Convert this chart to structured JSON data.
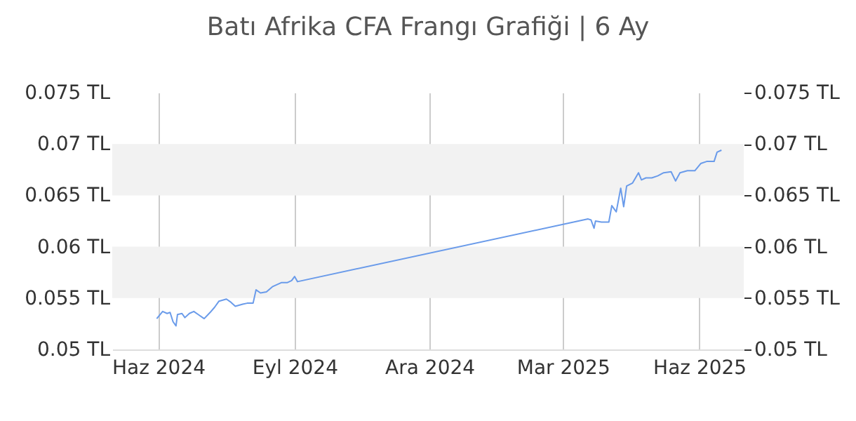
{
  "chart_data": {
    "type": "line",
    "title": "Batı Afrika CFA Frangı Grafiği | 6 Ay",
    "x": [
      "2024-05-31",
      "2024-06-04",
      "2024-06-07",
      "2024-06-09",
      "2024-06-11",
      "2024-06-13",
      "2024-06-14",
      "2024-06-17",
      "2024-06-19",
      "2024-06-22",
      "2024-06-25",
      "2024-06-28",
      "2024-07-02",
      "2024-07-06",
      "2024-07-09",
      "2024-07-12",
      "2024-07-17",
      "2024-07-20",
      "2024-07-23",
      "2024-07-28",
      "2024-07-31",
      "2024-08-04",
      "2024-08-06",
      "2024-08-09",
      "2024-08-13",
      "2024-08-17",
      "2024-08-23",
      "2024-08-27",
      "2024-08-30",
      "2024-09-01",
      "2024-09-03",
      "2025-03-18",
      "2025-03-20",
      "2025-03-22",
      "2025-03-23",
      "2025-03-27",
      "2025-04-01",
      "2025-04-03",
      "2025-04-06",
      "2025-04-09",
      "2025-04-11",
      "2025-04-13",
      "2025-04-17",
      "2025-04-21",
      "2025-04-23",
      "2025-04-26",
      "2025-04-30",
      "2025-05-04",
      "2025-05-08",
      "2025-05-13",
      "2025-05-16",
      "2025-05-19",
      "2025-05-24",
      "2025-05-29",
      "2025-06-02",
      "2025-06-06",
      "2025-06-11",
      "2025-06-13",
      "2025-06-16"
    ],
    "series": [
      {
        "color": "#6a9bea",
        "values": [
          0.053,
          0.0537,
          0.0535,
          0.0536,
          0.0527,
          0.0523,
          0.0534,
          0.0535,
          0.0531,
          0.0535,
          0.0537,
          0.0534,
          0.053,
          0.0536,
          0.0541,
          0.0547,
          0.0549,
          0.0546,
          0.0542,
          0.0544,
          0.0545,
          0.0545,
          0.0558,
          0.0555,
          0.0556,
          0.0561,
          0.0565,
          0.0565,
          0.0567,
          0.0571,
          0.0566,
          0.0627,
          0.0626,
          0.0618,
          0.0625,
          0.0624,
          0.0624,
          0.064,
          0.0634,
          0.0657,
          0.0639,
          0.0659,
          0.0662,
          0.0672,
          0.0665,
          0.0667,
          0.0667,
          0.0669,
          0.0672,
          0.0673,
          0.0664,
          0.0672,
          0.0674,
          0.0674,
          0.0681,
          0.0683,
          0.0683,
          0.0692,
          0.0694
        ]
      }
    ],
    "xlim": [
      "2024-05-01",
      "2025-07-01"
    ],
    "xticks": [
      {
        "value": "2024-06-01",
        "label": "Haz 2024"
      },
      {
        "value": "2024-09-01",
        "label": "Eyl 2024"
      },
      {
        "value": "2024-12-01",
        "label": "Ara 2024"
      },
      {
        "value": "2025-03-01",
        "label": "Mar 2025"
      },
      {
        "value": "2025-06-01",
        "label": "Haz 2025"
      }
    ],
    "ylim": [
      0.05,
      0.075
    ],
    "yticks": [
      {
        "value": 0.05,
        "label": "0.05 TL"
      },
      {
        "value": 0.055,
        "label": "0.055 TL"
      },
      {
        "value": 0.06,
        "label": "0.06 TL"
      },
      {
        "value": 0.065,
        "label": "0.065 TL"
      },
      {
        "value": 0.07,
        "label": "0.07 TL"
      },
      {
        "value": 0.075,
        "label": "0.075 TL"
      }
    ],
    "y2lim": [
      0.05,
      0.075
    ],
    "y2ticks": [
      {
        "value": 0.05,
        "label": "0.05 TL"
      },
      {
        "value": 0.055,
        "label": "0.055 TL"
      },
      {
        "value": 0.06,
        "label": "0.06 TL"
      },
      {
        "value": 0.065,
        "label": "0.065 TL"
      },
      {
        "value": 0.07,
        "label": "0.07 TL"
      },
      {
        "value": 0.075,
        "label": "0.075 TL"
      }
    ],
    "bands": [
      {
        "axis": "y",
        "from": 0.055,
        "to": 0.06,
        "color": "#f2f2f2"
      },
      {
        "axis": "y",
        "from": 0.065,
        "to": 0.07,
        "color": "#f2f2f2"
      }
    ],
    "grid": "x"
  }
}
